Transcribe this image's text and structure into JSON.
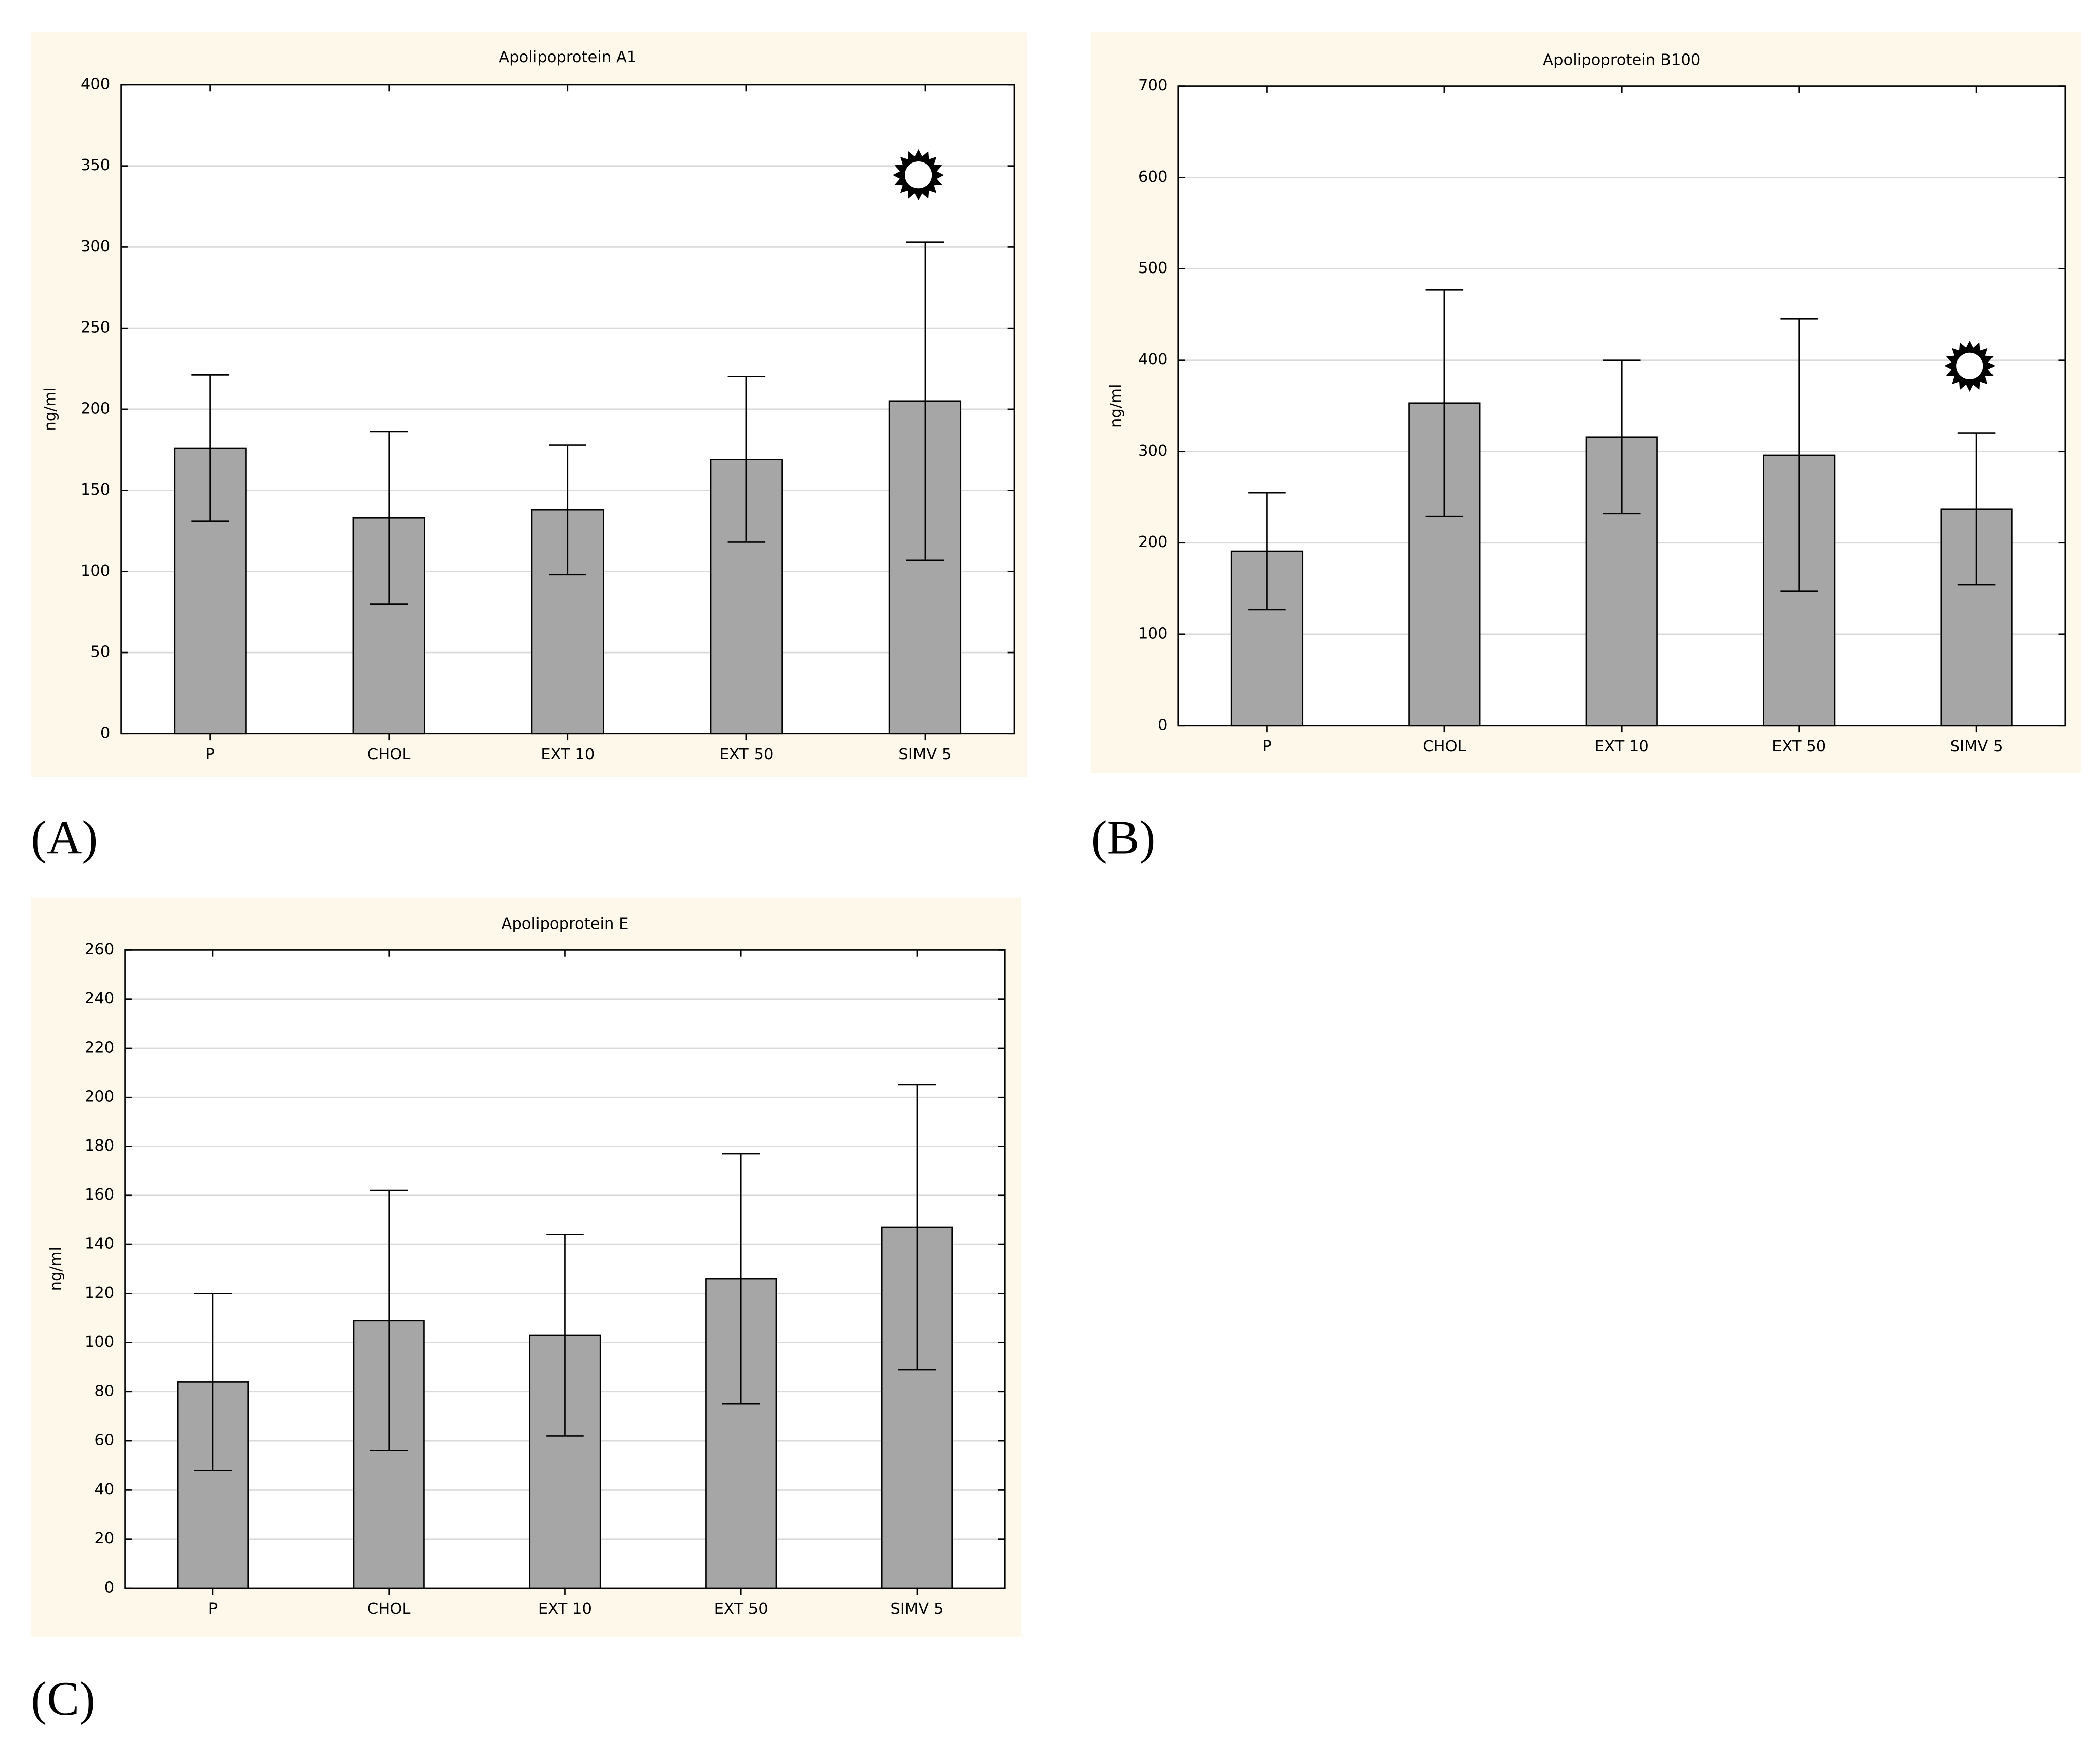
{
  "chart_data": [
    {
      "type": "bar",
      "title": "Apolipoprotein A1",
      "y_label": "ng/ml",
      "panel": "(A)",
      "categories": [
        "P",
        "CHOL",
        "EXT 10",
        "EXT 50",
        "SIMV 5"
      ],
      "values": [
        176,
        133,
        138,
        169,
        205
      ],
      "errors": [
        45,
        53,
        40,
        51,
        98
      ],
      "significant": [
        false,
        false,
        false,
        false,
        true
      ],
      "color": "#a6a6a6",
      "ylim": [
        0,
        400
      ],
      "yticks": [
        0,
        50,
        100,
        150,
        200,
        250,
        300,
        350,
        400
      ],
      "grid": true
    },
    {
      "type": "bar",
      "title": "Apolipoprotein B100",
      "y_label": "ng/ml",
      "panel": "(B)",
      "categories": [
        "P",
        "CHOL",
        "EXT 10",
        "EXT 50",
        "SIMV 5"
      ],
      "values": [
        191,
        353,
        316,
        296,
        237
      ],
      "errors": [
        64,
        124,
        84,
        149,
        83
      ],
      "significant": [
        false,
        false,
        false,
        false,
        true
      ],
      "color": "#a6a6a6",
      "ylim": [
        0,
        700
      ],
      "yticks": [
        0,
        100,
        200,
        300,
        400,
        500,
        600,
        700
      ],
      "grid": true
    },
    {
      "type": "bar",
      "title": "Apolipoprotein E",
      "y_label": "ng/ml",
      "panel": "(C)",
      "categories": [
        "P",
        "CHOL",
        "EXT 10",
        "EXT 50",
        "SIMV 5"
      ],
      "values": [
        84,
        109,
        103,
        126,
        147
      ],
      "errors": [
        36,
        53,
        41,
        51,
        58
      ],
      "significant": [
        false,
        false,
        false,
        false,
        false
      ],
      "color": "#a6a6a6",
      "ylim": [
        0,
        260
      ],
      "yticks": [
        0,
        20,
        40,
        60,
        80,
        100,
        120,
        140,
        160,
        180,
        200,
        220,
        240,
        260
      ],
      "grid": true
    }
  ]
}
